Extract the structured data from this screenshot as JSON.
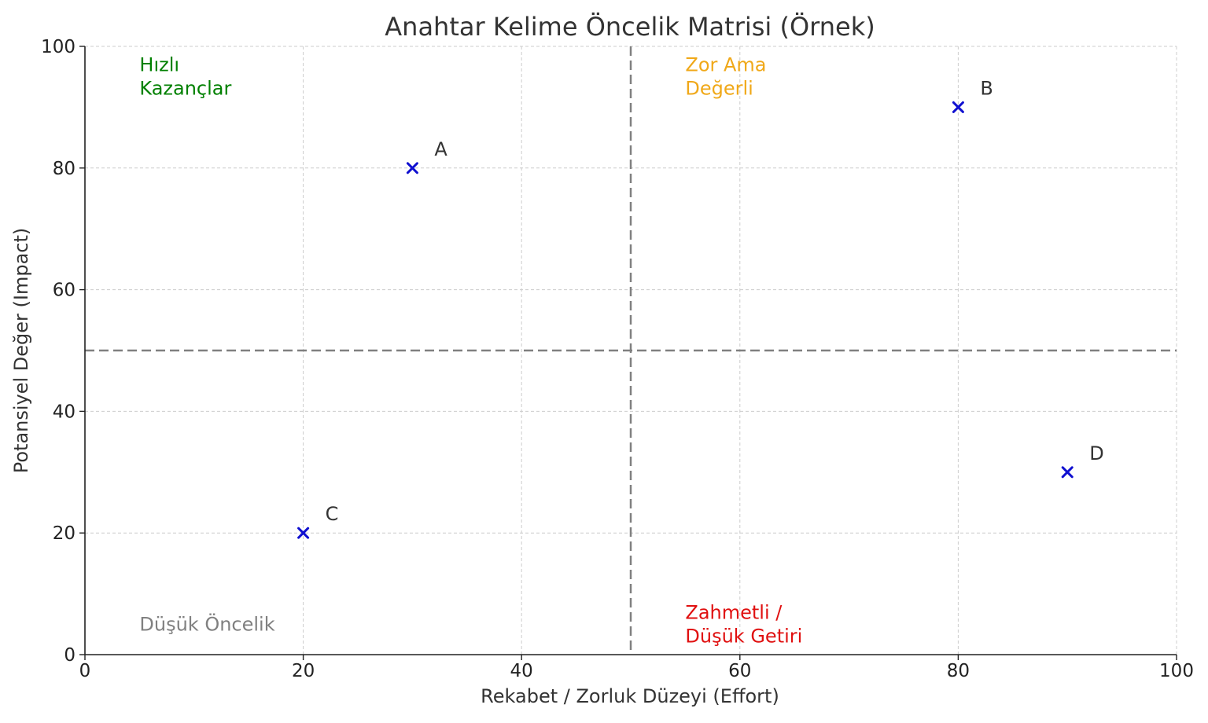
{
  "chart_data": {
    "type": "scatter",
    "title": "Anahtar Kelime Öncelik Matrisi (Örnek)",
    "xlabel": "Rekabet / Zorluk Düzeyi (Effort)",
    "ylabel": "Potansiyel Değer (Impact)",
    "xlim": [
      0,
      100
    ],
    "ylim": [
      0,
      100
    ],
    "xticks": [
      0,
      20,
      40,
      60,
      80,
      100
    ],
    "yticks": [
      0,
      20,
      40,
      60,
      80,
      100
    ],
    "grid": true,
    "marker": "x",
    "marker_color": "#1010d0",
    "points": [
      {
        "label": "A",
        "x": 30,
        "y": 80
      },
      {
        "label": "B",
        "x": 80,
        "y": 90
      },
      {
        "label": "C",
        "x": 20,
        "y": 20
      },
      {
        "label": "D",
        "x": 90,
        "y": 30
      }
    ],
    "reference_lines": [
      {
        "axis": "x",
        "value": 50,
        "style": "dashed",
        "color": "#808080"
      },
      {
        "axis": "y",
        "value": 50,
        "style": "dashed",
        "color": "#808080"
      }
    ],
    "quadrant_labels": [
      {
        "lines": [
          "Hızlı",
          "Kazançlar"
        ],
        "x": 5,
        "y": 95,
        "color": "#008000"
      },
      {
        "lines": [
          "Zor Ama",
          "Değerli"
        ],
        "x": 55,
        "y": 95,
        "color": "#f0a818"
      },
      {
        "lines": [
          "Düşük Öncelik"
        ],
        "x": 5,
        "y": 5,
        "color": "#808080"
      },
      {
        "lines": [
          "Zahmetli /",
          "Düşük Getiri"
        ],
        "x": 55,
        "y": 5,
        "color": "#e01010"
      }
    ]
  }
}
